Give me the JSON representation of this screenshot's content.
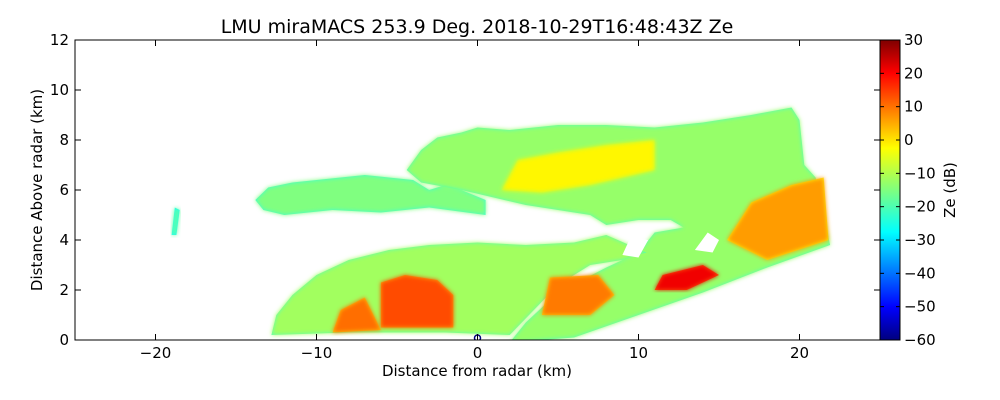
{
  "chart_data": {
    "type": "heatmap",
    "title": "LMU miraMACS 253.9 Deg. 2018-10-29T16:48:43Z  Ze",
    "xlabel": "Distance from radar (km)",
    "ylabel": "Distance Above radar  (km)",
    "xlim": [
      -25,
      25
    ],
    "ylim": [
      0,
      12
    ],
    "xticks": [
      -20,
      -10,
      0,
      10,
      20
    ],
    "xtick_labels": [
      "−20",
      "−10",
      "0",
      "10",
      "20"
    ],
    "yticks": [
      0,
      2,
      4,
      6,
      8,
      10,
      12
    ],
    "ytick_labels": [
      "0",
      "2",
      "4",
      "6",
      "8",
      "10",
      "12"
    ],
    "grid": false,
    "colorbar": {
      "label": "Ze (dB)",
      "range": [
        -60,
        30
      ],
      "ticks": [
        30,
        20,
        10,
        0,
        -10,
        -20,
        -30,
        -40,
        -50,
        -60
      ],
      "tick_labels": [
        "30",
        "20",
        "10",
        "0",
        "−10",
        "−20",
        "−30",
        "−40",
        "−50",
        "−60"
      ],
      "colormap": "jet"
    },
    "regions": [
      {
        "name": "upper-layer-left-tail",
        "dbz": -15,
        "polygon": [
          [
            -13.3,
            5.2
          ],
          [
            -13.8,
            5.6
          ],
          [
            -13.0,
            6.1
          ],
          [
            -11.5,
            6.3
          ],
          [
            -10.0,
            6.4
          ],
          [
            -7.0,
            6.6
          ],
          [
            -5.5,
            6.5
          ],
          [
            -4.0,
            6.4
          ],
          [
            -3.0,
            6.0
          ],
          [
            -2.0,
            6.2
          ],
          [
            -1.0,
            6.0
          ],
          [
            0.5,
            5.6
          ],
          [
            0.5,
            5.0
          ],
          [
            -3.0,
            5.3
          ],
          [
            -6.0,
            5.1
          ],
          [
            -9.0,
            5.2
          ],
          [
            -12.0,
            5.0
          ]
        ]
      },
      {
        "name": "upper-layer-main",
        "dbz": -13,
        "polygon": [
          [
            -4.4,
            6.8
          ],
          [
            -3.5,
            7.6
          ],
          [
            -2.5,
            8.1
          ],
          [
            -1.0,
            8.3
          ],
          [
            0.0,
            8.5
          ],
          [
            2.0,
            8.4
          ],
          [
            5.0,
            8.6
          ],
          [
            8.0,
            8.6
          ],
          [
            11.0,
            8.5
          ],
          [
            14.0,
            8.7
          ],
          [
            17.0,
            9.0
          ],
          [
            19.5,
            9.3
          ],
          [
            20.0,
            8.8
          ],
          [
            20.3,
            7.0
          ],
          [
            21.0,
            6.5
          ],
          [
            21.9,
            3.8
          ],
          [
            18.0,
            2.9
          ],
          [
            14.0,
            1.9
          ],
          [
            10.0,
            1.0
          ],
          [
            6.0,
            0.1
          ],
          [
            2.0,
            -0.1
          ],
          [
            3.0,
            0.7
          ],
          [
            5.0,
            1.9
          ],
          [
            8.0,
            2.9
          ],
          [
            10.0,
            3.5
          ],
          [
            11.0,
            4.3
          ],
          [
            12.8,
            4.5
          ],
          [
            12.0,
            4.8
          ],
          [
            10.0,
            4.8
          ],
          [
            8.0,
            4.6
          ],
          [
            7.0,
            5.0
          ],
          [
            3.0,
            5.4
          ],
          [
            1.0,
            5.7
          ],
          [
            -1.0,
            6.0
          ],
          [
            -3.5,
            6.3
          ]
        ]
      },
      {
        "name": "lower-layer",
        "dbz": -12,
        "polygon": [
          [
            -12.8,
            0.2
          ],
          [
            -12.5,
            1.0
          ],
          [
            -11.5,
            1.8
          ],
          [
            -10.0,
            2.6
          ],
          [
            -8.0,
            3.2
          ],
          [
            -5.5,
            3.6
          ],
          [
            -3.0,
            3.8
          ],
          [
            0.0,
            3.9
          ],
          [
            3.0,
            3.8
          ],
          [
            6.0,
            3.9
          ],
          [
            8.0,
            4.2
          ],
          [
            10.5,
            3.5
          ],
          [
            9.0,
            3.2
          ],
          [
            7.0,
            3.0
          ],
          [
            5.0,
            2.2
          ],
          [
            2.0,
            0.2
          ],
          [
            -2.0,
            0.3
          ],
          [
            -8.0,
            0.3
          ]
        ]
      },
      {
        "name": "core-lower-left",
        "dbz": 12,
        "polygon": [
          [
            -6.0,
            0.5
          ],
          [
            -6.0,
            2.3
          ],
          [
            -4.5,
            2.6
          ],
          [
            -2.5,
            2.4
          ],
          [
            -1.5,
            1.8
          ],
          [
            -1.5,
            0.5
          ]
        ]
      },
      {
        "name": "core-lower-center",
        "dbz": 9,
        "polygon": [
          [
            -9.0,
            0.3
          ],
          [
            -8.5,
            1.2
          ],
          [
            -7.0,
            1.7
          ],
          [
            -6.0,
            0.4
          ]
        ]
      },
      {
        "name": "core-lower-right",
        "dbz": 8,
        "polygon": [
          [
            4.0,
            1.0
          ],
          [
            4.5,
            2.5
          ],
          [
            7.5,
            2.6
          ],
          [
            8.5,
            1.8
          ],
          [
            7.0,
            1.0
          ]
        ]
      },
      {
        "name": "core-upper-right",
        "dbz": 5,
        "polygon": [
          [
            15.5,
            4.0
          ],
          [
            17.0,
            5.5
          ],
          [
            19.5,
            6.2
          ],
          [
            21.5,
            6.5
          ],
          [
            21.8,
            4.0
          ],
          [
            18.0,
            3.2
          ]
        ]
      },
      {
        "name": "core-bright-band",
        "dbz": 20,
        "polygon": [
          [
            11.0,
            2.0
          ],
          [
            11.5,
            2.6
          ],
          [
            14.0,
            3.0
          ],
          [
            15.0,
            2.6
          ],
          [
            13.0,
            2.0
          ]
        ]
      },
      {
        "name": "core-upper-mid",
        "dbz": -3,
        "polygon": [
          [
            1.5,
            6.0
          ],
          [
            2.5,
            7.2
          ],
          [
            5.0,
            7.5
          ],
          [
            8.0,
            7.8
          ],
          [
            11.0,
            8.0
          ],
          [
            11.0,
            6.8
          ],
          [
            7.0,
            6.2
          ],
          [
            4.0,
            5.9
          ]
        ]
      },
      {
        "name": "isolated-echo",
        "dbz": -18,
        "polygon": [
          [
            -19.0,
            4.2
          ],
          [
            -18.8,
            5.3
          ],
          [
            -18.5,
            5.2
          ],
          [
            -18.7,
            4.2
          ]
        ]
      },
      {
        "name": "gap-hole",
        "dbz": null,
        "polygon": [
          [
            13.5,
            3.6
          ],
          [
            14.3,
            4.3
          ],
          [
            15.0,
            4.0
          ],
          [
            14.6,
            3.5
          ]
        ]
      },
      {
        "name": "gap-hole-2",
        "dbz": null,
        "polygon": [
          [
            9.0,
            3.4
          ],
          [
            9.5,
            4.1
          ],
          [
            10.6,
            4.0
          ],
          [
            10.0,
            3.3
          ]
        ]
      }
    ],
    "radar_marker": {
      "x": 0,
      "y": 0
    }
  }
}
